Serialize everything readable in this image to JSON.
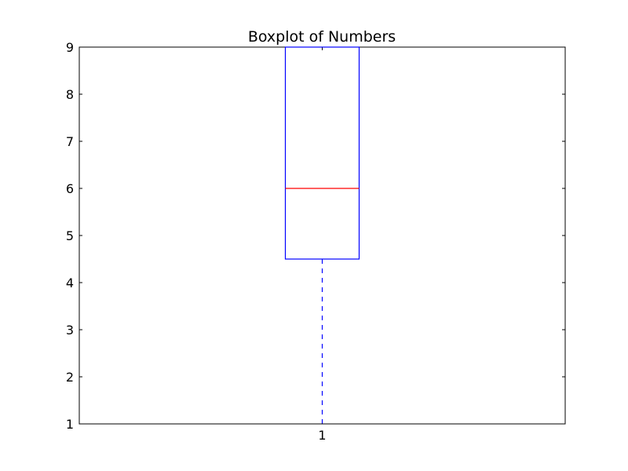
{
  "chart_data": {
    "type": "box",
    "title": "Boxplot of Numbers",
    "xlabel": "",
    "ylabel": "",
    "categories": [
      "1"
    ],
    "boxes": [
      {
        "category": "1",
        "whisker_low": 1,
        "q1": 4.5,
        "median": 6,
        "q3": 9,
        "whisker_high": 9
      }
    ],
    "ylim": [
      1,
      9
    ],
    "yticks": [
      1,
      2,
      3,
      4,
      5,
      6,
      7,
      8,
      9
    ],
    "grid": false,
    "colors": {
      "box": "#0000ff",
      "median": "#ff0000",
      "whisker": "#0000ff",
      "cap": "#000000",
      "axes": "#000000"
    }
  }
}
